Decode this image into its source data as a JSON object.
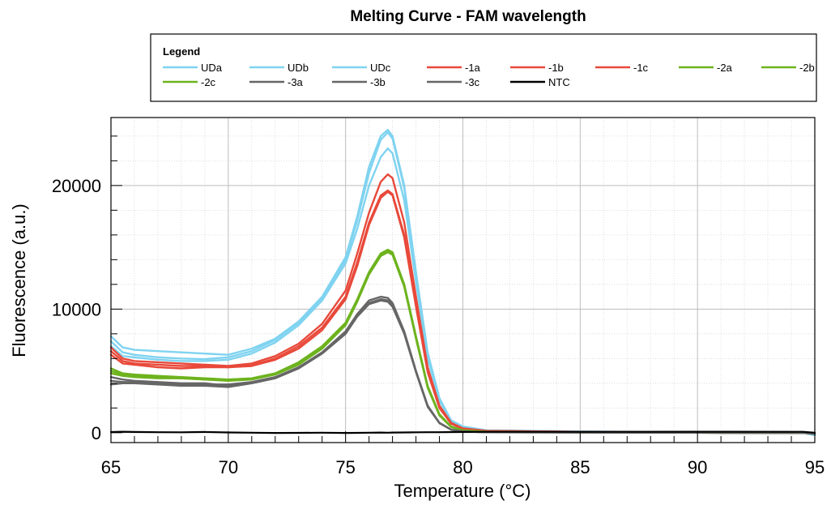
{
  "chart_data": {
    "type": "line",
    "title": "Melting Curve - FAM wavelength",
    "xlabel": "Temperature (°C)",
    "ylabel": "Fluorescence (a.u.)",
    "xlim": [
      65,
      95
    ],
    "ylim": [
      -800,
      25500
    ],
    "x_ticks": [
      65,
      70,
      75,
      80,
      85,
      90,
      95
    ],
    "x_tick_labels": [
      "65",
      "70",
      "75",
      "80",
      "85",
      "90",
      "95"
    ],
    "y_ticks": [
      0,
      10000,
      20000
    ],
    "y_tick_labels": [
      "0",
      "10000",
      "20000"
    ],
    "grid": true,
    "legend": {
      "title": "Legend",
      "placement": "top",
      "entries": [
        {
          "name": "UDa",
          "color": "#7fd3f0"
        },
        {
          "name": "UDb",
          "color": "#7fd3f0"
        },
        {
          "name": "UDc",
          "color": "#7fd3f0"
        },
        {
          "name": "-1a",
          "color": "#e8493a"
        },
        {
          "name": "-1b",
          "color": "#e8493a"
        },
        {
          "name": "-1c",
          "color": "#e8493a"
        },
        {
          "name": "-2a",
          "color": "#6db31e"
        },
        {
          "name": "-2b",
          "color": "#6db31e"
        },
        {
          "name": "-2c",
          "color": "#6db31e"
        },
        {
          "name": "-3a",
          "color": "#666666"
        },
        {
          "name": "-3b",
          "color": "#666666"
        },
        {
          "name": "-3c",
          "color": "#666666"
        },
        {
          "name": "NTC",
          "color": "#000000"
        }
      ]
    },
    "x": [
      65,
      65.5,
      66,
      67,
      68,
      69,
      70,
      71,
      72,
      73,
      74,
      75,
      75.5,
      76,
      76.5,
      76.8,
      77,
      77.5,
      78,
      78.5,
      79,
      79.5,
      80,
      81,
      85,
      90,
      94.5,
      95
    ],
    "series": [
      {
        "name": "UDa",
        "color": "#7fd3f0",
        "values": [
          7800,
          6900,
          6700,
          6600,
          6500,
          6400,
          6300,
          6800,
          7600,
          9000,
          11000,
          14200,
          17500,
          21500,
          24000,
          24500,
          24000,
          20000,
          13000,
          6500,
          2800,
          1000,
          500,
          200,
          100,
          50,
          0,
          -200
        ]
      },
      {
        "name": "UDb",
        "color": "#7fd3f0",
        "values": [
          7400,
          6500,
          6300,
          6100,
          6000,
          5950,
          6100,
          6600,
          7500,
          8900,
          10900,
          14000,
          17200,
          21000,
          23700,
          24300,
          23800,
          19800,
          12800,
          6300,
          2700,
          950,
          450,
          180,
          90,
          40,
          0,
          -150
        ]
      },
      {
        "name": "UDc",
        "color": "#7fd3f0",
        "values": [
          7000,
          6200,
          6100,
          5900,
          5800,
          5800,
          5900,
          6400,
          7300,
          8700,
          10700,
          13700,
          16500,
          20000,
          22300,
          23000,
          22600,
          18800,
          12200,
          6000,
          2600,
          900,
          420,
          170,
          80,
          30,
          0,
          -100
        ]
      },
      {
        "name": "-1a",
        "color": "#e8493a",
        "values": [
          6900,
          6000,
          5800,
          5700,
          5600,
          5500,
          5400,
          5600,
          6200,
          7200,
          8800,
          11500,
          14500,
          17800,
          20300,
          20900,
          20600,
          17000,
          11000,
          5300,
          2200,
          800,
          350,
          150,
          70,
          30,
          0,
          -100
        ]
      },
      {
        "name": "-1b",
        "color": "#e8493a",
        "values": [
          6600,
          5800,
          5600,
          5500,
          5400,
          5400,
          5300,
          5450,
          6000,
          7000,
          8500,
          11000,
          13800,
          17000,
          19200,
          19600,
          19300,
          16000,
          10400,
          5000,
          2100,
          750,
          330,
          140,
          60,
          20,
          0,
          -80
        ]
      },
      {
        "name": "-1c",
        "color": "#e8493a",
        "values": [
          6300,
          5600,
          5500,
          5300,
          5200,
          5300,
          5300,
          5400,
          5900,
          6800,
          8300,
          10800,
          13500,
          16800,
          19000,
          19500,
          19200,
          15800,
          10200,
          4900,
          2000,
          720,
          310,
          130,
          60,
          20,
          0,
          -80
        ]
      },
      {
        "name": "-2a",
        "color": "#6db31e",
        "values": [
          5200,
          4800,
          4700,
          4600,
          4500,
          4400,
          4300,
          4400,
          4800,
          5700,
          7000,
          8900,
          10800,
          13000,
          14500,
          14800,
          14600,
          12000,
          7800,
          3800,
          1500,
          500,
          200,
          80,
          30,
          0,
          -20,
          -100
        ]
      },
      {
        "name": "-2b",
        "color": "#6db31e",
        "values": [
          5000,
          4700,
          4600,
          4500,
          4400,
          4300,
          4300,
          4350,
          4750,
          5600,
          6900,
          8800,
          10700,
          12900,
          14400,
          14700,
          14500,
          11900,
          7700,
          3700,
          1450,
          480,
          190,
          75,
          25,
          0,
          -20,
          -100
        ]
      },
      {
        "name": "-2c",
        "color": "#6db31e",
        "values": [
          4800,
          4600,
          4500,
          4400,
          4400,
          4300,
          4200,
          4300,
          4700,
          5500,
          6800,
          8700,
          10600,
          12800,
          14300,
          14600,
          14400,
          11800,
          7600,
          3650,
          1400,
          460,
          180,
          70,
          20,
          0,
          -20,
          -100
        ]
      },
      {
        "name": "-3a",
        "color": "#666666",
        "values": [
          4200,
          4100,
          4100,
          4000,
          3900,
          3900,
          3900,
          4100,
          4500,
          5300,
          6500,
          8200,
          9600,
          10700,
          11000,
          10900,
          10500,
          8200,
          5000,
          2200,
          800,
          250,
          100,
          40,
          10,
          0,
          -20,
          -100
        ]
      },
      {
        "name": "-3b",
        "color": "#666666",
        "values": [
          3900,
          4000,
          4000,
          3900,
          3800,
          3800,
          3700,
          4000,
          4400,
          5200,
          6400,
          8000,
          9400,
          10400,
          10700,
          10600,
          10200,
          8000,
          4900,
          2100,
          780,
          240,
          95,
          35,
          10,
          0,
          -20,
          -100
        ]
      },
      {
        "name": "-3c",
        "color": "#666666",
        "values": [
          4500,
          4300,
          4200,
          4100,
          4000,
          4000,
          3800,
          4050,
          4450,
          5250,
          6450,
          8100,
          9500,
          10500,
          10800,
          10700,
          10300,
          8100,
          4950,
          2150,
          790,
          245,
          98,
          38,
          10,
          0,
          -20,
          -100
        ]
      },
      {
        "name": "NTC",
        "color": "#000000",
        "values": [
          50,
          80,
          60,
          40,
          30,
          60,
          20,
          0,
          -20,
          -10,
          0,
          -20,
          -10,
          0,
          10,
          0,
          10,
          20,
          30,
          40,
          40,
          50,
          60,
          70,
          70,
          80,
          70,
          0
        ]
      }
    ]
  }
}
